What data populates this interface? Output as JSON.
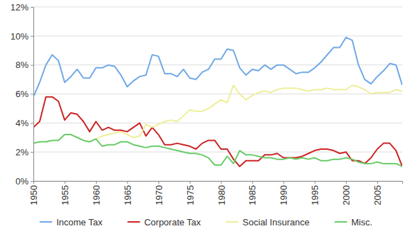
{
  "chart_data": {
    "type": "line",
    "x": [
      1950,
      1951,
      1952,
      1953,
      1954,
      1955,
      1956,
      1957,
      1958,
      1959,
      1960,
      1961,
      1962,
      1963,
      1964,
      1965,
      1966,
      1967,
      1968,
      1969,
      1970,
      1971,
      1972,
      1973,
      1974,
      1975,
      1976,
      1977,
      1978,
      1979,
      1980,
      1981,
      1982,
      1983,
      1984,
      1985,
      1986,
      1987,
      1988,
      1989,
      1990,
      1991,
      1992,
      1993,
      1994,
      1995,
      1996,
      1997,
      1998,
      1999,
      2000,
      2001,
      2002,
      2003,
      2004,
      2005,
      2006,
      2007,
      2008,
      2009
    ],
    "series": [
      {
        "name": "Income Tax",
        "color": "#6fa8e6",
        "values": [
          5.8,
          6.8,
          8.0,
          8.7,
          8.3,
          6.8,
          7.2,
          7.7,
          7.1,
          7.1,
          7.8,
          7.8,
          8.0,
          7.9,
          7.3,
          6.5,
          6.9,
          7.2,
          7.3,
          8.7,
          8.6,
          7.4,
          7.4,
          7.2,
          7.7,
          7.1,
          7.0,
          7.5,
          7.7,
          8.4,
          8.4,
          9.1,
          9.0,
          7.8,
          7.3,
          7.7,
          7.6,
          8.0,
          7.7,
          8.0,
          8.0,
          7.7,
          7.4,
          7.5,
          7.5,
          7.8,
          8.2,
          8.7,
          9.2,
          9.2,
          9.9,
          9.7,
          8.0,
          7.0,
          6.7,
          7.2,
          7.6,
          8.1,
          8.0,
          6.6
        ]
      },
      {
        "name": "Corporate Tax",
        "color": "#cc2222",
        "values": [
          3.7,
          4.1,
          5.8,
          5.8,
          5.5,
          4.2,
          4.7,
          4.6,
          4.1,
          3.4,
          4.1,
          3.5,
          3.7,
          3.5,
          3.5,
          3.4,
          3.7,
          4.0,
          3.1,
          3.7,
          3.2,
          2.5,
          2.5,
          2.6,
          2.5,
          2.4,
          2.2,
          2.6,
          2.8,
          2.8,
          2.2,
          2.2,
          1.5,
          1.0,
          1.4,
          1.4,
          1.4,
          1.8,
          1.8,
          1.9,
          1.6,
          1.6,
          1.6,
          1.7,
          1.9,
          2.1,
          2.2,
          2.2,
          2.1,
          1.9,
          2.0,
          1.4,
          1.4,
          1.2,
          1.6,
          2.2,
          2.6,
          2.6,
          2.1,
          1.0
        ]
      },
      {
        "name": "Social Insurance",
        "color": "#eeee99",
        "values": [
          null,
          null,
          null,
          null,
          null,
          null,
          null,
          null,
          null,
          null,
          2.9,
          3.1,
          3.2,
          3.3,
          3.4,
          3.2,
          3.0,
          3.1,
          3.9,
          3.7,
          3.9,
          4.1,
          4.2,
          4.1,
          4.5,
          4.9,
          4.8,
          4.8,
          5.0,
          5.3,
          5.6,
          5.4,
          6.6,
          6.0,
          5.6,
          5.9,
          6.1,
          6.2,
          6.1,
          6.3,
          6.4,
          6.4,
          6.4,
          6.3,
          6.2,
          6.3,
          6.3,
          6.4,
          6.3,
          6.3,
          6.3,
          6.6,
          6.5,
          6.3,
          6.0,
          6.1,
          6.1,
          6.1,
          6.3,
          6.2
        ]
      },
      {
        "name": "Misc.",
        "color": "#66cc66",
        "values": [
          2.6,
          2.7,
          2.7,
          2.8,
          2.8,
          3.2,
          3.2,
          3.0,
          2.8,
          2.7,
          2.9,
          2.4,
          2.5,
          2.5,
          2.7,
          2.7,
          2.5,
          2.4,
          2.3,
          2.4,
          2.4,
          2.3,
          2.2,
          2.1,
          2.0,
          1.9,
          1.9,
          1.8,
          1.6,
          1.1,
          1.1,
          1.7,
          1.2,
          2.1,
          1.8,
          1.8,
          1.7,
          1.6,
          1.6,
          1.5,
          1.5,
          1.6,
          1.5,
          1.6,
          1.5,
          1.6,
          1.4,
          1.4,
          1.5,
          1.5,
          1.6,
          1.5,
          1.3,
          1.2,
          1.2,
          1.3,
          1.2,
          1.2,
          1.2,
          1.0
        ]
      }
    ],
    "xlim": [
      1950,
      2009
    ],
    "xticks": [
      1950,
      1955,
      1960,
      1965,
      1970,
      1975,
      1980,
      1985,
      1990,
      1995,
      2000,
      2005
    ],
    "ylim": [
      0,
      12
    ],
    "yticks": [
      {
        "value": 0,
        "label": "0%"
      },
      {
        "value": 2,
        "label": "2%"
      },
      {
        "value": 4,
        "label": "4%"
      },
      {
        "value": 6,
        "label": "6%"
      },
      {
        "value": 8,
        "label": "8%"
      },
      {
        "value": 10,
        "label": "10%"
      },
      {
        "value": 12,
        "label": "12%"
      }
    ],
    "grid": true,
    "legend": "bottom"
  }
}
